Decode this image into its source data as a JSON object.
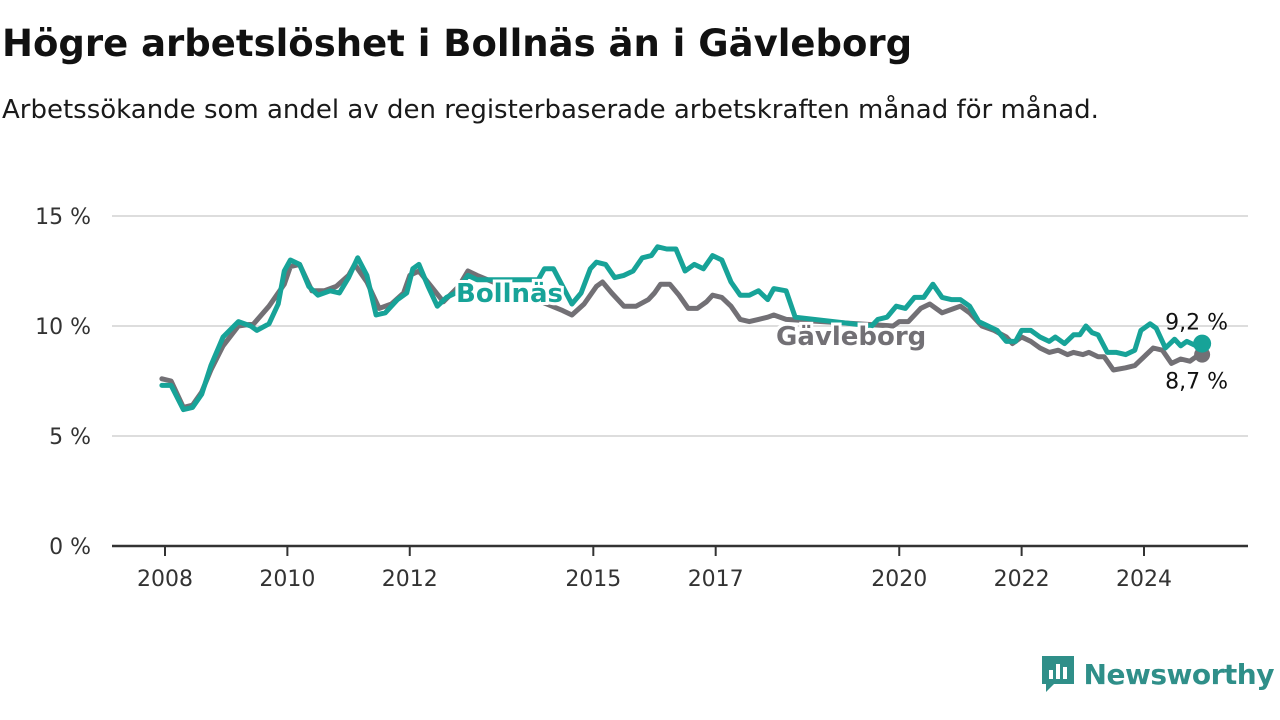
{
  "title": "Högre arbetslöshet i Bollnäs än i Gävleborg",
  "subtitle": "Arbetssökande som andel av den registerbaserade arbetskraften månad för månad.",
  "brand": "Newsworthy",
  "colors": {
    "bollnas": "#17a398",
    "gavleborg": "#727075",
    "grid": "#dddddd",
    "axis": "#333333",
    "brand": "#2f8f89"
  },
  "chart_data": {
    "type": "line",
    "title": "Högre arbetslöshet i Bollnäs än i Gävleborg",
    "ylim": [
      0,
      15
    ],
    "xlim": [
      2008,
      2025.1
    ],
    "yticks": [
      {
        "v": 0,
        "label": "0 %"
      },
      {
        "v": 5,
        "label": "5 %"
      },
      {
        "v": 10,
        "label": "10 %"
      },
      {
        "v": 15,
        "label": "15 %"
      }
    ],
    "xticks": [
      {
        "v": 2008,
        "label": "2008"
      },
      {
        "v": 2010,
        "label": "2010"
      },
      {
        "v": 2012,
        "label": "2012"
      },
      {
        "v": 2015,
        "label": "2015"
      },
      {
        "v": 2017,
        "label": "2017"
      },
      {
        "v": 2020,
        "label": "2020"
      },
      {
        "v": 2022,
        "label": "2022"
      },
      {
        "v": 2024,
        "label": "2024"
      }
    ],
    "grid": true,
    "series": [
      {
        "name": "Gävleborg",
        "end_label": "8,7 %",
        "points": [
          [
            2007.95,
            7.6
          ],
          [
            2008.1,
            7.5
          ],
          [
            2008.3,
            6.3
          ],
          [
            2008.45,
            6.4
          ],
          [
            2008.6,
            7.0
          ],
          [
            2008.75,
            8.0
          ],
          [
            2008.95,
            9.1
          ],
          [
            2009.2,
            10.0
          ],
          [
            2009.45,
            10.1
          ],
          [
            2009.7,
            10.9
          ],
          [
            2009.95,
            11.9
          ],
          [
            2010.05,
            12.7
          ],
          [
            2010.2,
            12.8
          ],
          [
            2010.4,
            11.6
          ],
          [
            2010.6,
            11.6
          ],
          [
            2010.8,
            11.8
          ],
          [
            2011.0,
            12.3
          ],
          [
            2011.1,
            12.8
          ],
          [
            2011.3,
            12.0
          ],
          [
            2011.5,
            10.8
          ],
          [
            2011.7,
            11.0
          ],
          [
            2011.9,
            11.5
          ],
          [
            2012.0,
            12.3
          ],
          [
            2012.15,
            12.5
          ],
          [
            2012.35,
            11.8
          ],
          [
            2012.55,
            11.1
          ],
          [
            2012.8,
            11.8
          ],
          [
            2012.95,
            12.5
          ],
          [
            2013.1,
            12.3
          ],
          [
            2014.5,
            10.7
          ],
          [
            2014.65,
            10.5
          ],
          [
            2014.85,
            11.0
          ],
          [
            2015.05,
            11.8
          ],
          [
            2015.15,
            12.0
          ],
          [
            2015.3,
            11.5
          ],
          [
            2015.5,
            10.9
          ],
          [
            2015.7,
            10.9
          ],
          [
            2015.9,
            11.2
          ],
          [
            2016.0,
            11.5
          ],
          [
            2016.1,
            11.9
          ],
          [
            2016.25,
            11.9
          ],
          [
            2016.4,
            11.4
          ],
          [
            2016.55,
            10.8
          ],
          [
            2016.7,
            10.8
          ],
          [
            2016.85,
            11.1
          ],
          [
            2016.95,
            11.4
          ],
          [
            2017.1,
            11.3
          ],
          [
            2017.25,
            10.9
          ],
          [
            2017.4,
            10.3
          ],
          [
            2017.55,
            10.2
          ],
          [
            2017.7,
            10.3
          ],
          [
            2017.85,
            10.4
          ],
          [
            2017.95,
            10.5
          ],
          [
            2018.15,
            10.3
          ],
          [
            2019.9,
            10.0
          ],
          [
            2020.0,
            10.2
          ],
          [
            2020.15,
            10.2
          ],
          [
            2020.35,
            10.8
          ],
          [
            2020.5,
            11.0
          ],
          [
            2020.7,
            10.6
          ],
          [
            2020.9,
            10.8
          ],
          [
            2021.0,
            10.9
          ],
          [
            2021.15,
            10.6
          ],
          [
            2021.35,
            10.0
          ],
          [
            2021.55,
            9.8
          ],
          [
            2021.75,
            9.5
          ],
          [
            2021.85,
            9.2
          ],
          [
            2022.0,
            9.5
          ],
          [
            2022.15,
            9.3
          ],
          [
            2022.3,
            9.0
          ],
          [
            2022.45,
            8.8
          ],
          [
            2022.6,
            8.9
          ],
          [
            2022.75,
            8.7
          ],
          [
            2022.85,
            8.8
          ],
          [
            2023.0,
            8.7
          ],
          [
            2023.1,
            8.8
          ],
          [
            2023.25,
            8.6
          ],
          [
            2023.35,
            8.6
          ],
          [
            2023.5,
            8.0
          ],
          [
            2023.7,
            8.1
          ],
          [
            2023.85,
            8.2
          ],
          [
            2024.0,
            8.6
          ],
          [
            2024.15,
            9.0
          ],
          [
            2024.3,
            8.9
          ],
          [
            2024.45,
            8.3
          ],
          [
            2024.6,
            8.5
          ],
          [
            2024.75,
            8.4
          ],
          [
            2024.9,
            8.7
          ],
          [
            2024.95,
            8.7
          ]
        ]
      },
      {
        "name": "Bollnäs",
        "end_label": "9,2 %",
        "points": [
          [
            2007.95,
            7.3
          ],
          [
            2008.1,
            7.3
          ],
          [
            2008.3,
            6.2
          ],
          [
            2008.45,
            6.3
          ],
          [
            2008.6,
            6.9
          ],
          [
            2008.75,
            8.2
          ],
          [
            2008.95,
            9.5
          ],
          [
            2009.2,
            10.2
          ],
          [
            2009.4,
            10.0
          ],
          [
            2009.5,
            9.8
          ],
          [
            2009.7,
            10.1
          ],
          [
            2009.85,
            11.0
          ],
          [
            2009.95,
            12.5
          ],
          [
            2010.05,
            13.0
          ],
          [
            2010.2,
            12.8
          ],
          [
            2010.35,
            11.8
          ],
          [
            2010.5,
            11.4
          ],
          [
            2010.7,
            11.6
          ],
          [
            2010.85,
            11.5
          ],
          [
            2011.0,
            12.2
          ],
          [
            2011.15,
            13.1
          ],
          [
            2011.3,
            12.3
          ],
          [
            2011.45,
            10.5
          ],
          [
            2011.6,
            10.6
          ],
          [
            2011.8,
            11.2
          ],
          [
            2011.95,
            11.5
          ],
          [
            2012.05,
            12.6
          ],
          [
            2012.15,
            12.8
          ],
          [
            2012.3,
            11.8
          ],
          [
            2012.45,
            10.9
          ],
          [
            2012.6,
            11.3
          ],
          [
            2012.75,
            11.5
          ],
          [
            2012.95,
            12.3
          ],
          [
            2013.1,
            12.1
          ],
          [
            2014.1,
            12.1
          ],
          [
            2014.2,
            12.6
          ],
          [
            2014.35,
            12.6
          ],
          [
            2014.5,
            11.8
          ],
          [
            2014.65,
            11.0
          ],
          [
            2014.8,
            11.5
          ],
          [
            2014.95,
            12.6
          ],
          [
            2015.05,
            12.9
          ],
          [
            2015.2,
            12.8
          ],
          [
            2015.35,
            12.2
          ],
          [
            2015.5,
            12.3
          ],
          [
            2015.65,
            12.5
          ],
          [
            2015.8,
            13.1
          ],
          [
            2015.95,
            13.2
          ],
          [
            2016.05,
            13.6
          ],
          [
            2016.2,
            13.5
          ],
          [
            2016.35,
            13.5
          ],
          [
            2016.5,
            12.5
          ],
          [
            2016.65,
            12.8
          ],
          [
            2016.8,
            12.6
          ],
          [
            2016.95,
            13.2
          ],
          [
            2017.1,
            13.0
          ],
          [
            2017.25,
            12.0
          ],
          [
            2017.4,
            11.4
          ],
          [
            2017.55,
            11.4
          ],
          [
            2017.7,
            11.6
          ],
          [
            2017.85,
            11.2
          ],
          [
            2017.95,
            11.7
          ],
          [
            2018.15,
            11.6
          ],
          [
            2018.3,
            10.4
          ],
          [
            2019.55,
            10.0
          ],
          [
            2019.65,
            10.3
          ],
          [
            2019.8,
            10.4
          ],
          [
            2019.95,
            10.9
          ],
          [
            2020.1,
            10.8
          ],
          [
            2020.25,
            11.3
          ],
          [
            2020.4,
            11.3
          ],
          [
            2020.55,
            11.9
          ],
          [
            2020.7,
            11.3
          ],
          [
            2020.85,
            11.2
          ],
          [
            2021.0,
            11.2
          ],
          [
            2021.15,
            10.9
          ],
          [
            2021.3,
            10.2
          ],
          [
            2021.45,
            10.0
          ],
          [
            2021.6,
            9.8
          ],
          [
            2021.75,
            9.3
          ],
          [
            2021.9,
            9.3
          ],
          [
            2022.0,
            9.8
          ],
          [
            2022.15,
            9.8
          ],
          [
            2022.3,
            9.5
          ],
          [
            2022.45,
            9.3
          ],
          [
            2022.55,
            9.5
          ],
          [
            2022.7,
            9.2
          ],
          [
            2022.85,
            9.6
          ],
          [
            2022.95,
            9.6
          ],
          [
            2023.05,
            10.0
          ],
          [
            2023.15,
            9.7
          ],
          [
            2023.25,
            9.6
          ],
          [
            2023.4,
            8.8
          ],
          [
            2023.55,
            8.8
          ],
          [
            2023.7,
            8.7
          ],
          [
            2023.85,
            8.9
          ],
          [
            2023.95,
            9.8
          ],
          [
            2024.1,
            10.1
          ],
          [
            2024.2,
            9.9
          ],
          [
            2024.35,
            9.0
          ],
          [
            2024.5,
            9.4
          ],
          [
            2024.6,
            9.1
          ],
          [
            2024.7,
            9.3
          ],
          [
            2024.85,
            9.1
          ],
          [
            2024.95,
            9.2
          ]
        ]
      }
    ]
  }
}
